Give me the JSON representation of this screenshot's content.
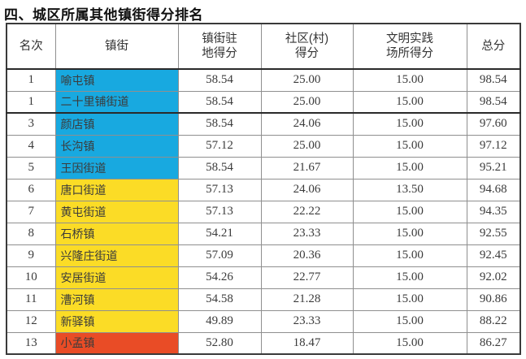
{
  "title": "四、城区所属其他镇街得分排名",
  "colors": {
    "blue": "#18A9E0",
    "yellow": "#FBDC26",
    "red": "#E94C26",
    "text": "#3b3b3b",
    "border_inner": "#8f8f8f",
    "border_outer": "#3a3a3a"
  },
  "table": {
    "headers": [
      "名次",
      "镇街",
      "镇街驻\n地得分",
      "社区(村)\n得分",
      "文明实践\n场所得分",
      "总分"
    ],
    "rows": [
      {
        "rank": "1",
        "name": "喻屯镇",
        "town_score": "58.54",
        "community_score": "25.00",
        "practice_score": "15.00",
        "total": "98.54",
        "color": "blue",
        "group_end": false
      },
      {
        "rank": "1",
        "name": "二十里铺街道",
        "town_score": "58.54",
        "community_score": "25.00",
        "practice_score": "15.00",
        "total": "98.54",
        "color": "blue",
        "group_end": true
      },
      {
        "rank": "3",
        "name": "颜店镇",
        "town_score": "58.54",
        "community_score": "24.06",
        "practice_score": "15.00",
        "total": "97.60",
        "color": "blue",
        "group_end": false
      },
      {
        "rank": "4",
        "name": "长沟镇",
        "town_score": "57.12",
        "community_score": "25.00",
        "practice_score": "15.00",
        "total": "97.12",
        "color": "blue",
        "group_end": false
      },
      {
        "rank": "5",
        "name": "王因街道",
        "town_score": "58.54",
        "community_score": "21.67",
        "practice_score": "15.00",
        "total": "95.21",
        "color": "blue",
        "group_end": false
      },
      {
        "rank": "6",
        "name": "唐口街道",
        "town_score": "57.13",
        "community_score": "24.06",
        "practice_score": "13.50",
        "total": "94.68",
        "color": "yellow",
        "group_end": false
      },
      {
        "rank": "7",
        "name": "黄屯街道",
        "town_score": "57.13",
        "community_score": "22.22",
        "practice_score": "15.00",
        "total": "94.35",
        "color": "yellow",
        "group_end": false
      },
      {
        "rank": "8",
        "name": "石桥镇",
        "town_score": "54.21",
        "community_score": "23.33",
        "practice_score": "15.00",
        "total": "92.55",
        "color": "yellow",
        "group_end": false
      },
      {
        "rank": "9",
        "name": "兴隆庄街道",
        "town_score": "57.09",
        "community_score": "20.36",
        "practice_score": "15.00",
        "total": "92.45",
        "color": "yellow",
        "group_end": false
      },
      {
        "rank": "10",
        "name": "安居街道",
        "town_score": "54.26",
        "community_score": "22.77",
        "practice_score": "15.00",
        "total": "92.02",
        "color": "yellow",
        "group_end": false
      },
      {
        "rank": "11",
        "name": "漕河镇",
        "town_score": "54.58",
        "community_score": "21.28",
        "practice_score": "15.00",
        "total": "90.86",
        "color": "yellow",
        "group_end": false
      },
      {
        "rank": "12",
        "name": "新驿镇",
        "town_score": "49.89",
        "community_score": "23.33",
        "practice_score": "15.00",
        "total": "88.22",
        "color": "yellow",
        "group_end": false
      },
      {
        "rank": "13",
        "name": "小孟镇",
        "town_score": "52.80",
        "community_score": "18.47",
        "practice_score": "15.00",
        "total": "86.27",
        "color": "red",
        "group_end": false
      }
    ]
  }
}
